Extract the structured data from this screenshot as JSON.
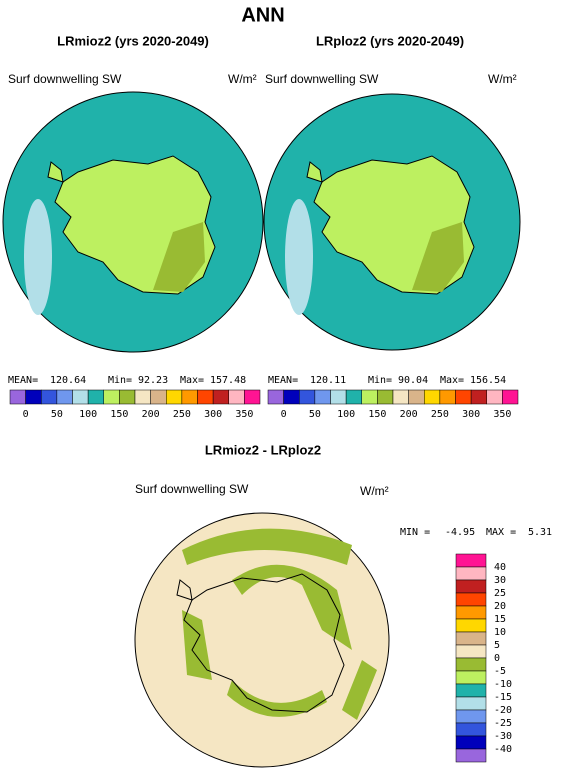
{
  "title": "ANN",
  "panels": [
    {
      "title": "LRmioz2 (yrs 2020-2049)",
      "variable": "Surf downwelling SW",
      "units": "W/m²",
      "stats": {
        "mean_label": "MEAN=",
        "mean": 120.64,
        "min_label": "Min=",
        "min": 92.23,
        "max_label": "Max=",
        "max": 157.48
      }
    },
    {
      "title": "LRploz2 (yrs 2020-2049)",
      "variable": "Surf downwelling SW",
      "units": "W/m²",
      "stats": {
        "mean_label": "MEAN=",
        "mean": 120.11,
        "min_label": "Min=",
        "min": 90.04,
        "max_label": "Max=",
        "max": 156.54
      }
    }
  ],
  "colorbar": {
    "labels": [
      0,
      50,
      100,
      150,
      200,
      250,
      300,
      350
    ],
    "colors": [
      "#9966dd",
      "#0000bb",
      "#3355dd",
      "#6f97ee",
      "#b2dfe8",
      "#20b2aa",
      "#bdf060",
      "#99bb33",
      "#f5e6c3",
      "#d9b48a",
      "#ffd700",
      "#ff9900",
      "#ff4500",
      "#c02020",
      "#ffb6c1",
      "#ff1493"
    ]
  },
  "difference": {
    "title": "LRmioz2 - LRploz2",
    "variable": "Surf downwelling SW",
    "units": "W/m²",
    "min_label": "MIN =",
    "min": -4.95,
    "max_label": "MAX =",
    "max": 5.31,
    "colorbar": {
      "labels": [
        40,
        30,
        25,
        20,
        15,
        10,
        5,
        0,
        -5,
        -10,
        -15,
        -20,
        -25,
        -30,
        -40
      ],
      "colors": [
        "#ff1493",
        "#ffb6c1",
        "#c02020",
        "#ff4500",
        "#ff9900",
        "#ffd700",
        "#d9b48a",
        "#f5e6c3",
        "#99bb33",
        "#bdf060",
        "#20b2aa",
        "#b2dfe8",
        "#6f97ee",
        "#3355dd",
        "#0000bb",
        "#9966dd"
      ]
    }
  }
}
